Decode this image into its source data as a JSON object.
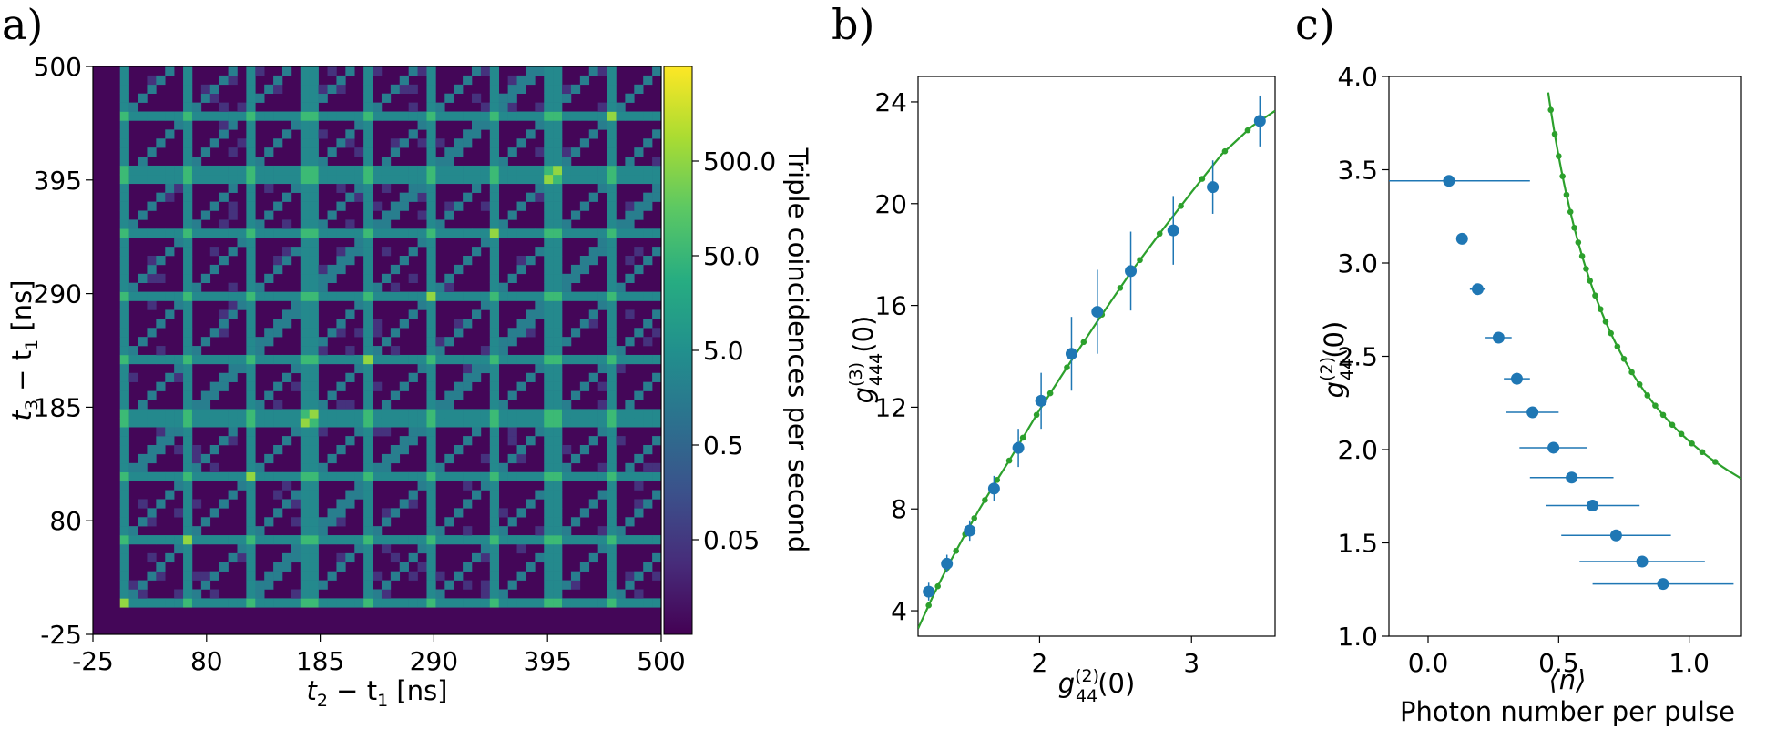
{
  "chart_data": [
    {
      "panel_label": "a)",
      "type": "heatmap",
      "xlabel": {
        "base": "t",
        "s1": "2",
        "mid": " − t",
        "s2": "1",
        "unit": " [ns]"
      },
      "ylabel": {
        "base": "t",
        "s1": "3",
        "mid": " − t",
        "s2": "1",
        "unit": " [ns]"
      },
      "xlim": [
        -25,
        500
      ],
      "ylim": [
        -25,
        500
      ],
      "xticks": [
        -25,
        80,
        185,
        290,
        395,
        500
      ],
      "yticks": [
        -25,
        80,
        185,
        290,
        395,
        500
      ],
      "x_tick_labels": [
        "-25",
        "80",
        "185",
        "290",
        "395",
        "500"
      ],
      "y_tick_labels": [
        "-25",
        "80",
        "185",
        "290",
        "395",
        "500"
      ],
      "bin_ns": 8.3,
      "pulse_period_ns": 56.2,
      "peak_positions_ns": [
        5,
        61,
        117,
        174,
        230,
        286,
        342,
        398,
        455
      ],
      "scale": "log",
      "colorbar": {
        "label": "Triple coincidences per second",
        "range": [
          0.005,
          5000
        ],
        "ticks": [
          0.05,
          0.5,
          5.0,
          50.0,
          500.0
        ],
        "tick_labels": [
          "0.05",
          "0.5",
          "5.0",
          "50.0",
          "500.0"
        ],
        "colormap": "viridis"
      },
      "levels": {
        "background": 0.006,
        "diagonal": 1.8,
        "line": 3.5,
        "crossing": 60,
        "coincidence_crossing": 500
      }
    },
    {
      "panel_label": "b)",
      "type": "scatter",
      "xlabel": {
        "base": "g",
        "sup": "(2)",
        "sub": "44",
        "arg": "(0)"
      },
      "ylabel": {
        "base": "g",
        "sup": "(3)",
        "sub": "444",
        "arg": "(0)"
      },
      "xlim": [
        1.2,
        3.55
      ],
      "ylim": [
        3,
        25
      ],
      "xticks": [
        2,
        3
      ],
      "yticks": [
        4,
        8,
        12,
        16,
        20,
        24
      ],
      "x_tick_labels": [
        "2",
        "3"
      ],
      "y_tick_labels": [
        "4",
        "8",
        "12",
        "16",
        "20",
        "24"
      ],
      "series": [
        {
          "kind": "measured",
          "color": "#1f77b4",
          "points": [
            {
              "x": 1.27,
              "y": 4.75,
              "yerr": 0.35
            },
            {
              "x": 1.39,
              "y": 5.85,
              "yerr": 0.35
            },
            {
              "x": 1.54,
              "y": 7.15,
              "yerr": 0.4
            },
            {
              "x": 1.7,
              "y": 8.8,
              "yerr": 0.5
            },
            {
              "x": 1.86,
              "y": 10.4,
              "yerr": 0.75
            },
            {
              "x": 2.01,
              "y": 12.25,
              "yerr": 1.1
            },
            {
              "x": 2.21,
              "y": 14.1,
              "yerr": 1.45
            },
            {
              "x": 2.38,
              "y": 15.75,
              "yerr": 1.65
            },
            {
              "x": 2.6,
              "y": 17.35,
              "yerr": 1.55
            },
            {
              "x": 2.88,
              "y": 18.95,
              "yerr": 1.35
            },
            {
              "x": 3.14,
              "y": 20.65,
              "yerr": 1.05
            },
            {
              "x": 3.45,
              "y": 23.25,
              "yerr": 1.0
            }
          ]
        },
        {
          "kind": "theory",
          "color": "#2ca02c",
          "curve": [
            [
              1.2,
              3.3
            ],
            [
              1.3,
              4.6
            ],
            [
              1.4,
              5.8
            ],
            [
              1.5,
              6.9
            ],
            [
              1.6,
              7.95
            ],
            [
              1.7,
              8.95
            ],
            [
              1.8,
              9.9
            ],
            [
              1.9,
              10.9
            ],
            [
              2.0,
              11.9
            ],
            [
              2.2,
              13.75
            ],
            [
              2.4,
              15.55
            ],
            [
              2.6,
              17.3
            ],
            [
              2.8,
              18.9
            ],
            [
              3.0,
              20.45
            ],
            [
              3.2,
              21.95
            ],
            [
              3.4,
              23.05
            ],
            [
              3.55,
              23.65
            ]
          ],
          "markers_x": [
            1.27,
            1.33,
            1.39,
            1.45,
            1.51,
            1.57,
            1.64,
            1.72,
            1.8,
            1.89,
            1.98,
            2.07,
            2.18,
            2.29,
            2.41,
            2.53,
            2.66,
            2.79,
            2.93,
            3.07,
            3.22,
            3.37
          ]
        }
      ]
    },
    {
      "panel_label": "c)",
      "type": "scatter",
      "xlabel": "Photon number per pulse",
      "xlabel_symbol": "⟨n⟩",
      "ylabel": {
        "base": "g",
        "sup": "(2)",
        "sub": "44",
        "arg": "(0)"
      },
      "xlim": [
        -0.15,
        1.2
      ],
      "ylim": [
        1.0,
        4.0
      ],
      "xticks": [
        0.0,
        0.5,
        1.0
      ],
      "yticks": [
        1.0,
        1.5,
        2.0,
        2.5,
        3.0,
        3.5,
        4.0
      ],
      "x_tick_labels": [
        "0.0",
        "0.5",
        "1.0"
      ],
      "y_tick_labels": [
        "1.0",
        "1.5",
        "2.0",
        "2.5",
        "3.0",
        "3.5",
        "4.0"
      ],
      "series": [
        {
          "kind": "measured",
          "color": "#1f77b4",
          "points": [
            {
              "x": 0.08,
              "y": 3.44,
              "xerr": 0.31
            },
            {
              "x": 0.13,
              "y": 3.13,
              "xerr": 0.0
            },
            {
              "x": 0.19,
              "y": 2.86,
              "xerr": 0.03
            },
            {
              "x": 0.27,
              "y": 2.6,
              "xerr": 0.05
            },
            {
              "x": 0.34,
              "y": 2.38,
              "xerr": 0.05
            },
            {
              "x": 0.4,
              "y": 2.2,
              "xerr": 0.1
            },
            {
              "x": 0.48,
              "y": 2.01,
              "xerr": 0.13
            },
            {
              "x": 0.55,
              "y": 1.85,
              "xerr": 0.16
            },
            {
              "x": 0.63,
              "y": 1.7,
              "xerr": 0.18
            },
            {
              "x": 0.72,
              "y": 1.54,
              "xerr": 0.21
            },
            {
              "x": 0.82,
              "y": 1.4,
              "xerr": 0.24
            },
            {
              "x": 0.9,
              "y": 1.28,
              "xerr": 0.27
            }
          ]
        },
        {
          "kind": "theory",
          "color": "#2ca02c",
          "equation": "y = 1 + 0.88 / (x - 0.158)",
          "x_range": [
            0.46,
            1.2
          ],
          "markers_x": [
            0.47,
            0.485,
            0.5,
            0.515,
            0.53,
            0.545,
            0.56,
            0.575,
            0.59,
            0.605,
            0.62,
            0.64,
            0.66,
            0.68,
            0.7,
            0.725,
            0.75,
            0.78,
            0.81,
            0.84,
            0.87,
            0.9,
            0.935,
            0.97,
            1.01,
            1.05,
            1.1
          ]
        }
      ]
    }
  ]
}
